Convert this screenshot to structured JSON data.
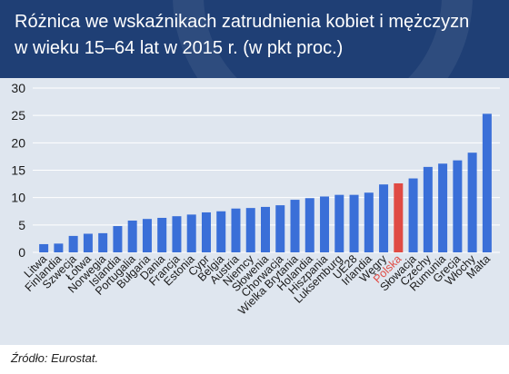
{
  "title_line1": "Różnica we wskaźnikach zatrudnienia kobiet i mężczyzn",
  "title_line2": "w wieku 15–64 lat w 2015 r. (w pkt proc.)",
  "source": "Źródło: Eurostat.",
  "colors": {
    "header": "#1f3f75",
    "plot_background": "#dfe6ef",
    "bar": "#3a6fd8",
    "highlight_bar": "#e04a43",
    "highlight_label": "#e04a43",
    "label": "#1a1a1a"
  },
  "chart_data": {
    "type": "bar",
    "title": "Różnica we wskaźnikach zatrudnienia kobiet i mężczyzn w wieku 15–64 lat w 2015 r. (w pkt proc.)",
    "xlabel": "",
    "ylabel": "",
    "ylim": [
      0,
      30
    ],
    "yticks": [
      0,
      5,
      10,
      15,
      20,
      25,
      30
    ],
    "grid": true,
    "highlight": "Polska",
    "categories": [
      "Litwa",
      "Finlandia",
      "Szwecja",
      "Łotwa",
      "Norwegia",
      "Islandia",
      "Portugalia",
      "Bułgaria",
      "Dania",
      "Francja",
      "Estonia",
      "Cypr",
      "Belgia",
      "Austria",
      "Niemcy",
      "Słowenia",
      "Chorwacja",
      "Wielka Brytania",
      "Holandia",
      "Hiszpania",
      "Luksemburg",
      "UE28",
      "Irlandia",
      "Węgry",
      "Polska",
      "Słowacja",
      "Czechy",
      "Rumunia",
      "Grecja",
      "Włochy",
      "Malta"
    ],
    "values": [
      1.5,
      1.6,
      3.0,
      3.4,
      3.5,
      4.8,
      5.8,
      6.1,
      6.3,
      6.6,
      6.9,
      7.3,
      7.5,
      8.0,
      8.1,
      8.3,
      8.6,
      9.6,
      9.9,
      10.2,
      10.5,
      10.5,
      10.9,
      12.4,
      12.6,
      13.5,
      15.6,
      16.2,
      16.8,
      18.2,
      25.3
    ]
  }
}
